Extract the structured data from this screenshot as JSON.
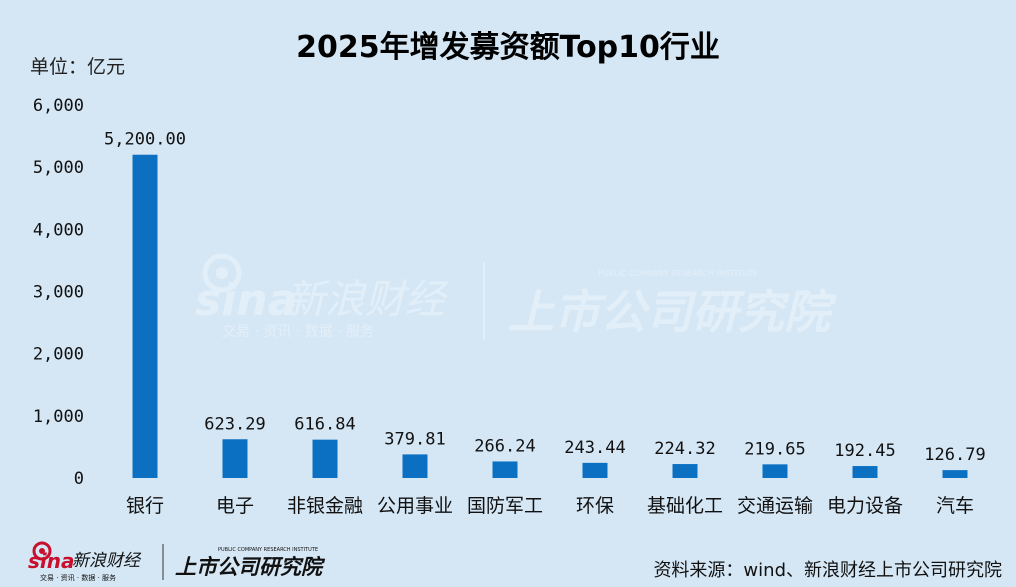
{
  "chart_data": {
    "type": "bar",
    "title": "2025年增发募资额Top10行业",
    "ylabel": "单位：亿元",
    "categories": [
      "银行",
      "电子",
      "非银金融",
      "公用事业",
      "国防军工",
      "环保",
      "基础化工",
      "交通运输",
      "电力设备",
      "汽车"
    ],
    "values": [
      5200.0,
      623.29,
      616.84,
      379.81,
      266.24,
      243.44,
      224.32,
      219.65,
      192.45,
      126.79
    ],
    "data_labels": [
      "5,200.00",
      "623.29",
      "616.84",
      "379.81",
      "266.24",
      "243.44",
      "224.32",
      "219.65",
      "192.45",
      "126.79"
    ],
    "ylim": [
      0,
      6000
    ],
    "yticks": [
      0,
      1000,
      2000,
      3000,
      4000,
      5000,
      6000
    ],
    "ytick_labels": [
      "0",
      "1,000",
      "2,000",
      "3,000",
      "4,000",
      "5,000",
      "6,000"
    ],
    "grid": false,
    "legend": "none",
    "bar_color": "#0b70c2"
  },
  "source": "资料来源：wind、新浪财经上市公司研究院",
  "watermark": {
    "brand": "sina",
    "brand_cn": "新浪财经",
    "brand_sub": "交易 · 资讯 · 数据 · 服务",
    "institute": "上市公司研究院",
    "institute_en": "PUBLIC COMPANY RESEARCH INSTITUTE"
  },
  "colors": {
    "background": "#d5e7f5",
    "bar": "#0b70c2",
    "logo_red": "#c8102e"
  }
}
